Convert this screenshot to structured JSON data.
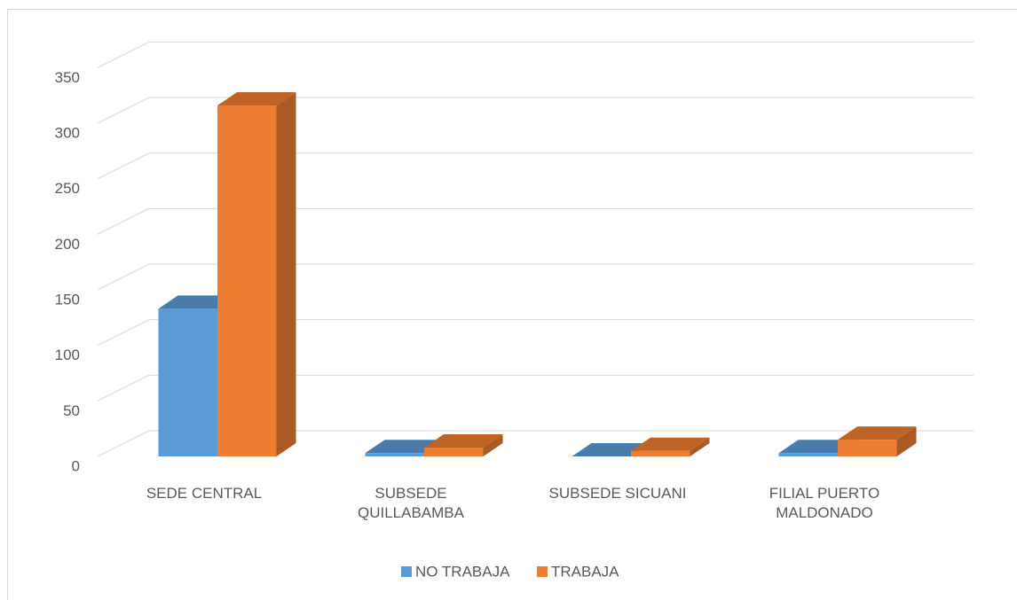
{
  "chart_data": {
    "type": "bar3d",
    "categories": [
      "SEDE CENTRAL",
      "SUBSEDE QUILLABAMBA",
      "SUBSEDE SICUANI",
      "FILIAL PUERTO MALDONADO"
    ],
    "series": [
      {
        "name": "NO TRABAJA",
        "color": "#5b9bd5",
        "values": [
          133,
          3,
          0,
          3
        ]
      },
      {
        "name": "TRABAJA",
        "color": "#ed7d31",
        "values": [
          316,
          8,
          5,
          15
        ]
      }
    ],
    "ylim": [
      0,
      350
    ],
    "yticks": [
      0,
      50,
      100,
      150,
      200,
      250,
      300,
      350
    ],
    "grid": true,
    "legend": "bottom"
  }
}
